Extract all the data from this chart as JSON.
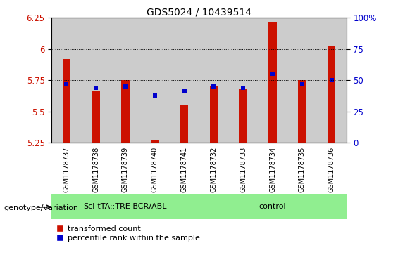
{
  "title": "GDS5024 / 10439514",
  "samples": [
    "GSM1178737",
    "GSM1178738",
    "GSM1178739",
    "GSM1178740",
    "GSM1178741",
    "GSM1178732",
    "GSM1178733",
    "GSM1178734",
    "GSM1178735",
    "GSM1178736"
  ],
  "red_values": [
    5.92,
    5.67,
    5.75,
    5.27,
    5.55,
    5.7,
    5.68,
    6.22,
    5.75,
    6.02
  ],
  "blue_values": [
    5.72,
    5.69,
    5.7,
    5.63,
    5.66,
    5.7,
    5.69,
    5.8,
    5.72,
    5.75
  ],
  "ylim_left": [
    5.25,
    6.25
  ],
  "ylim_right": [
    0,
    100
  ],
  "yticks_left": [
    5.25,
    5.5,
    5.75,
    6.0,
    6.25
  ],
  "yticks_right": [
    0,
    25,
    50,
    75,
    100
  ],
  "ytick_right_labels": [
    "0",
    "25",
    "50",
    "75",
    "100%"
  ],
  "group1_label": "Scl-tTA::TRE-BCR/ABL",
  "group1_indices": [
    0,
    1,
    2,
    3,
    4
  ],
  "group2_label": "control",
  "group2_indices": [
    5,
    6,
    7,
    8,
    9
  ],
  "legend_red": "transformed count",
  "legend_blue": "percentile rank within the sample",
  "genotype_label": "genotype/variation",
  "bar_width": 0.28,
  "red_color": "#cc1100",
  "blue_color": "#0000cc",
  "group_bg_color": "#90ee90",
  "sample_bg_color": "#cccccc",
  "bar_bottom": 5.25
}
